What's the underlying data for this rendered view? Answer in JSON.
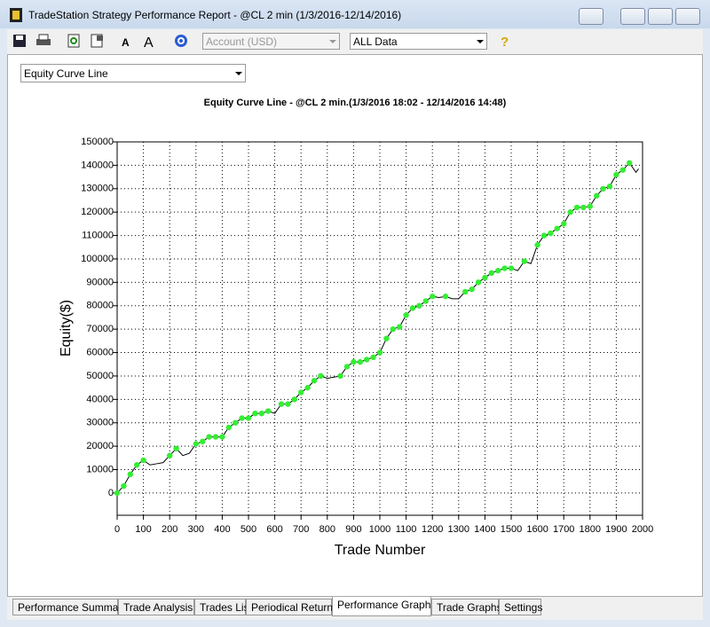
{
  "window": {
    "title": "TradeStation Strategy Performance Report - @CL 2 min (1/3/2016-12/14/2016)"
  },
  "toolbar": {
    "account": "Account (USD)",
    "data_range": "ALL Data"
  },
  "chart_selector": "Equity Curve Line",
  "chart_data": {
    "type": "line",
    "title": "Equity Curve Line - @CL 2 min.(1/3/2016 18:02 - 12/14/2016 14:48)",
    "x_label": "Trade Number",
    "y_label": "Equity($)",
    "x": [
      0,
      25,
      50,
      75,
      100,
      125,
      150,
      175,
      200,
      225,
      250,
      275,
      300,
      325,
      350,
      375,
      400,
      425,
      450,
      475,
      500,
      525,
      550,
      575,
      600,
      625,
      650,
      675,
      700,
      725,
      750,
      775,
      800,
      825,
      850,
      875,
      900,
      925,
      950,
      975,
      1000,
      1025,
      1050,
      1075,
      1100,
      1125,
      1150,
      1175,
      1200,
      1225,
      1250,
      1275,
      1300,
      1325,
      1350,
      1375,
      1400,
      1425,
      1450,
      1475,
      1500,
      1525,
      1550,
      1575,
      1600,
      1625,
      1650,
      1675,
      1700,
      1725,
      1750,
      1775,
      1800,
      1825,
      1850,
      1875,
      1900,
      1925,
      1950,
      1975,
      1985
    ],
    "values": [
      0,
      3000,
      8000,
      12000,
      14000,
      12000,
      12500,
      13000,
      16000,
      19000,
      16000,
      17000,
      21000,
      22000,
      24000,
      24000,
      24000,
      28000,
      30000,
      32000,
      32000,
      34000,
      34000,
      35000,
      34000,
      38000,
      38000,
      40000,
      43000,
      45000,
      48000,
      50000,
      49000,
      49500,
      50000,
      54000,
      56000,
      56000,
      57000,
      58000,
      60000,
      66000,
      70000,
      71000,
      76000,
      79000,
      80000,
      82000,
      84000,
      83500,
      84000,
      83000,
      83000,
      86000,
      87000,
      90000,
      92000,
      94000,
      95000,
      96000,
      96000,
      95000,
      99000,
      98000,
      106000,
      110000,
      111000,
      113000,
      115000,
      120000,
      122000,
      122000,
      122500,
      127000,
      130000,
      131000,
      136000,
      138000,
      141000,
      137000,
      138500
    ],
    "line_color": "#000000",
    "highlight_color": "#33ee33",
    "xlim": [
      0,
      2000
    ],
    "ylim": [
      -9500,
      150000
    ],
    "xticks": [
      0,
      100,
      200,
      300,
      400,
      500,
      600,
      700,
      800,
      900,
      1000,
      1100,
      1200,
      1300,
      1400,
      1500,
      1600,
      1700,
      1800,
      1900,
      2000
    ],
    "yticks": [
      0,
      10000,
      20000,
      30000,
      40000,
      50000,
      60000,
      70000,
      80000,
      90000,
      100000,
      110000,
      120000,
      130000,
      140000,
      150000
    ],
    "grid": true
  },
  "tabs": [
    "Performance Summary",
    "Trade Analysis",
    "Trades List",
    "Periodical Returns",
    "Performance Graphs",
    "Trade Graphs",
    "Settings"
  ]
}
